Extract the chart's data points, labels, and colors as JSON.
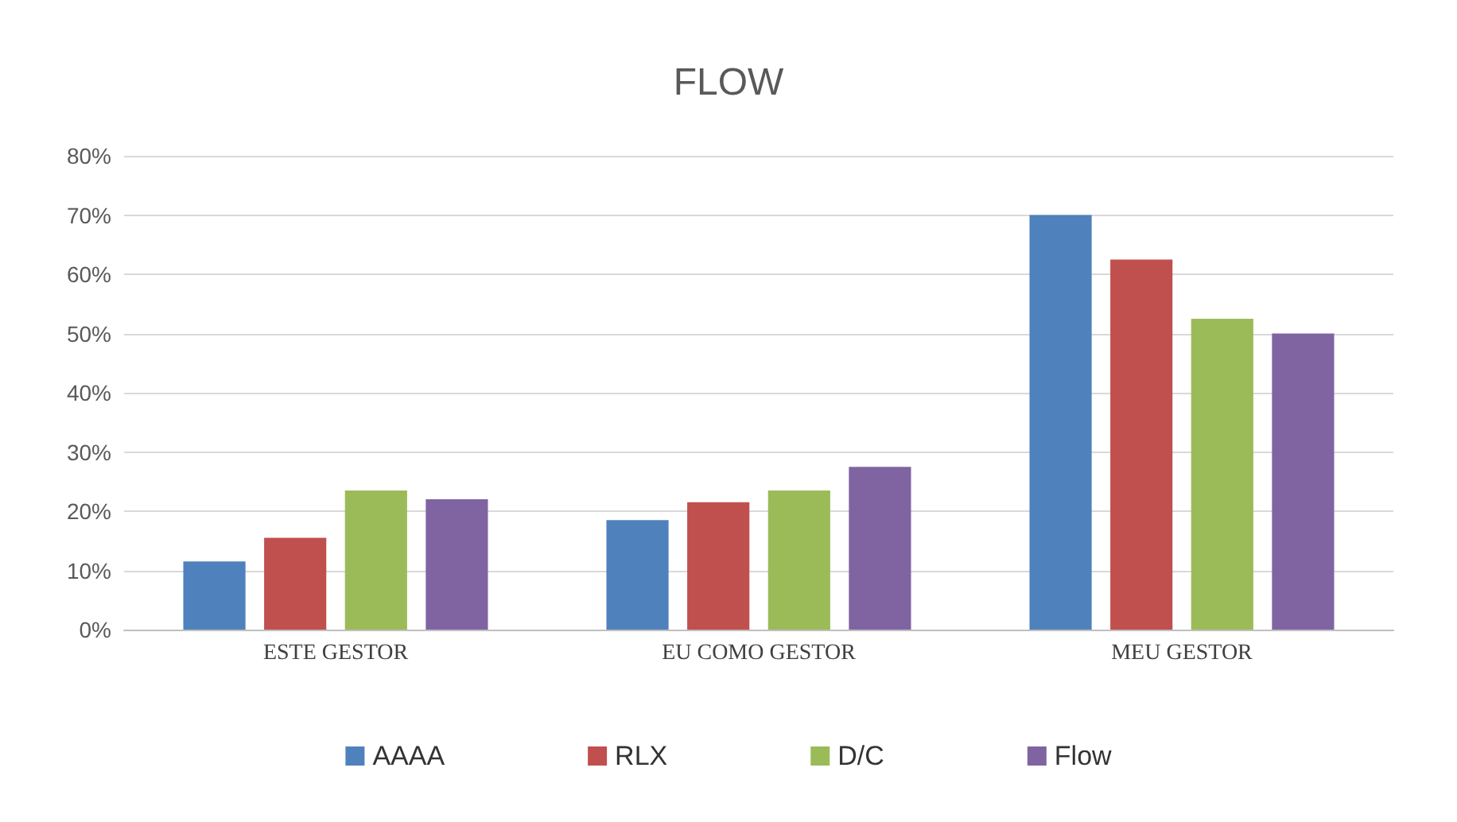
{
  "chart_data": {
    "type": "bar",
    "title": "FLOW",
    "categories": [
      "ESTE GESTOR",
      "EU COMO GESTOR",
      "MEU GESTOR"
    ],
    "series": [
      {
        "name": "AAAA",
        "color": "#4f81bd",
        "values": [
          11.5,
          18.5,
          70
        ]
      },
      {
        "name": "RLX",
        "color": "#c0504d",
        "values": [
          15.5,
          21.5,
          62.5
        ]
      },
      {
        "name": "D/C",
        "color": "#9bbb59",
        "values": [
          23.5,
          23.5,
          52.5
        ]
      },
      {
        "name": "Flow",
        "color": "#8064a2",
        "values": [
          22,
          27.5,
          50
        ]
      }
    ],
    "ylim": [
      0,
      80
    ],
    "yticks": [
      {
        "value": 0,
        "label": "0%"
      },
      {
        "value": 10,
        "label": "10%"
      },
      {
        "value": 20,
        "label": "20%"
      },
      {
        "value": 30,
        "label": "30%"
      },
      {
        "value": 40,
        "label": "40%"
      },
      {
        "value": 50,
        "label": "50%"
      },
      {
        "value": 60,
        "label": "60%"
      },
      {
        "value": 70,
        "label": "70%"
      },
      {
        "value": 80,
        "label": "80%"
      }
    ],
    "grid": "y",
    "legend": "bottom"
  }
}
